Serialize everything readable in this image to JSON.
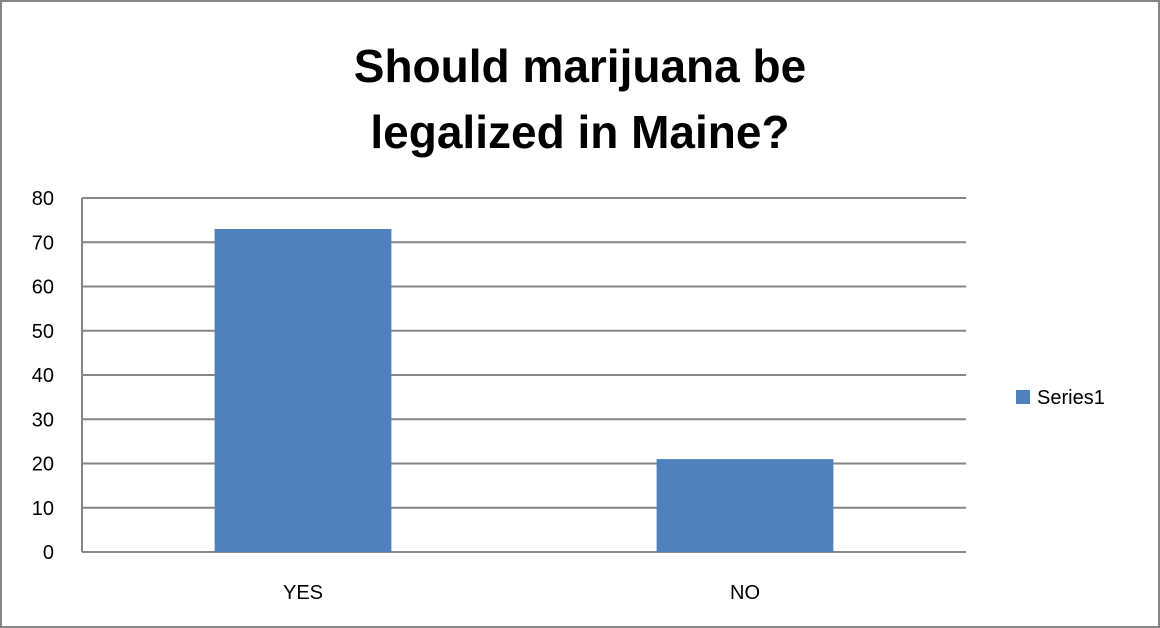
{
  "chart_data": {
    "type": "bar",
    "title": [
      "Should marijuana be",
      "legalized  in Maine?"
    ],
    "categories": [
      "YES",
      "NO"
    ],
    "series": [
      {
        "name": "Series1",
        "values": [
          73,
          21
        ]
      }
    ],
    "ylim": [
      0,
      80
    ],
    "yticks": [
      0,
      10,
      20,
      30,
      40,
      50,
      60,
      70,
      80
    ],
    "grid": true,
    "legend_position": "right",
    "bar_color": "#4F81BD",
    "gridline_color": "#868686"
  }
}
